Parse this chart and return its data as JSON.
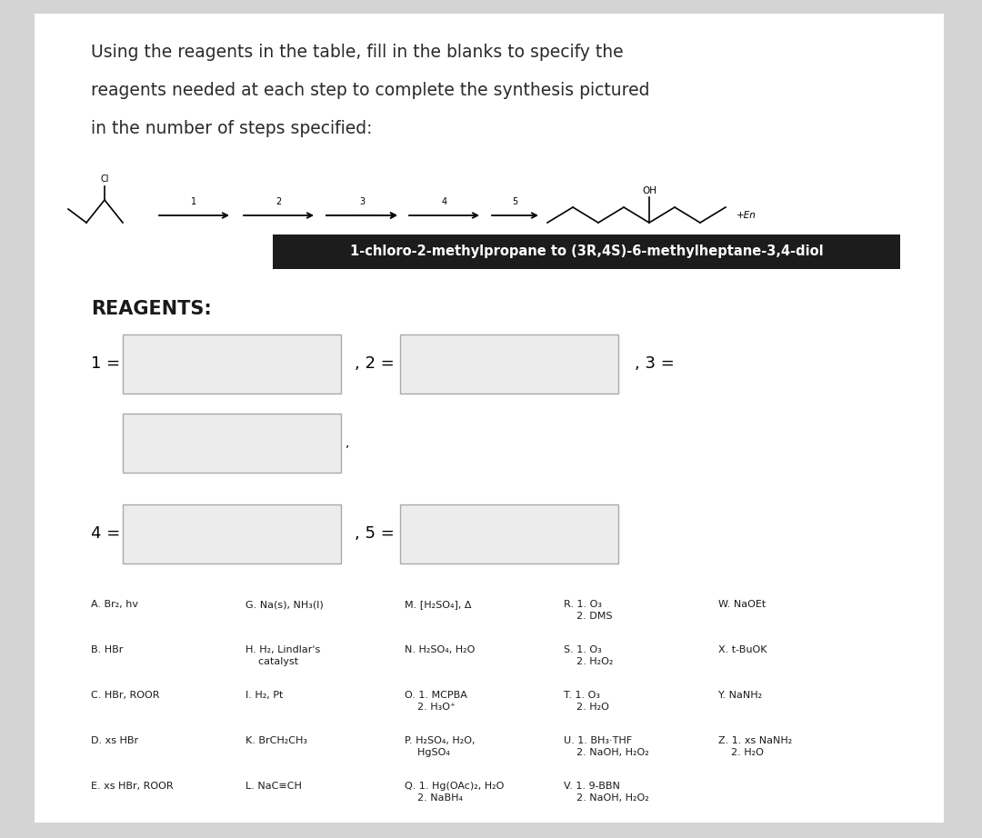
{
  "bg_color": "#d4d4d4",
  "paper_color": "#ffffff",
  "title_lines": [
    "Using the reagents in the table, fill in the blanks to specify the",
    "reagents needed at each step to complete the synthesis pictured",
    "in the number of steps specified:"
  ],
  "synthesis_label": "1-chloro-2-methylpropane to (3R,4S)-6-methylheptane-3,4-diol",
  "reagents_header": "REAGENTS:",
  "reagent_columns": [
    [
      "A. Br₂, hv",
      "B. HBr",
      "C. HBr, ROOR",
      "D. xs HBr",
      "E. xs HBr, ROOR"
    ],
    [
      "G. Na(s), NH₃(l)",
      "H. H₂, Lindlar's\n    catalyst",
      "I. H₂, Pt",
      "K. BrCH₂CH₃",
      "L. NaC≡CH"
    ],
    [
      "M. [H₂SO₄], Δ",
      "N. H₂SO₄, H₂O",
      "O. 1. MCPBA\n    2. H₃O⁺",
      "P. H₂SO₄, H₂O,\n    HgSO₄",
      "Q. 1. Hg(OAc)₂, H₂O\n    2. NaBH₄"
    ],
    [
      "R. 1. O₃\n    2. DMS",
      "S. 1. O₃\n    2. H₂O₂",
      "T. 1. O₃\n    2. H₂O",
      "U. 1. BH₃·THF\n    2. NaOH, H₂O₂",
      "V. 1. 9-BBN\n    2. NaOH, H₂O₂"
    ],
    [
      "W. NaOEt",
      "X. t-BuOK",
      "Y. NaNH₂",
      "Z. 1. xs NaNH₂\n    2. H₂O",
      ""
    ]
  ]
}
